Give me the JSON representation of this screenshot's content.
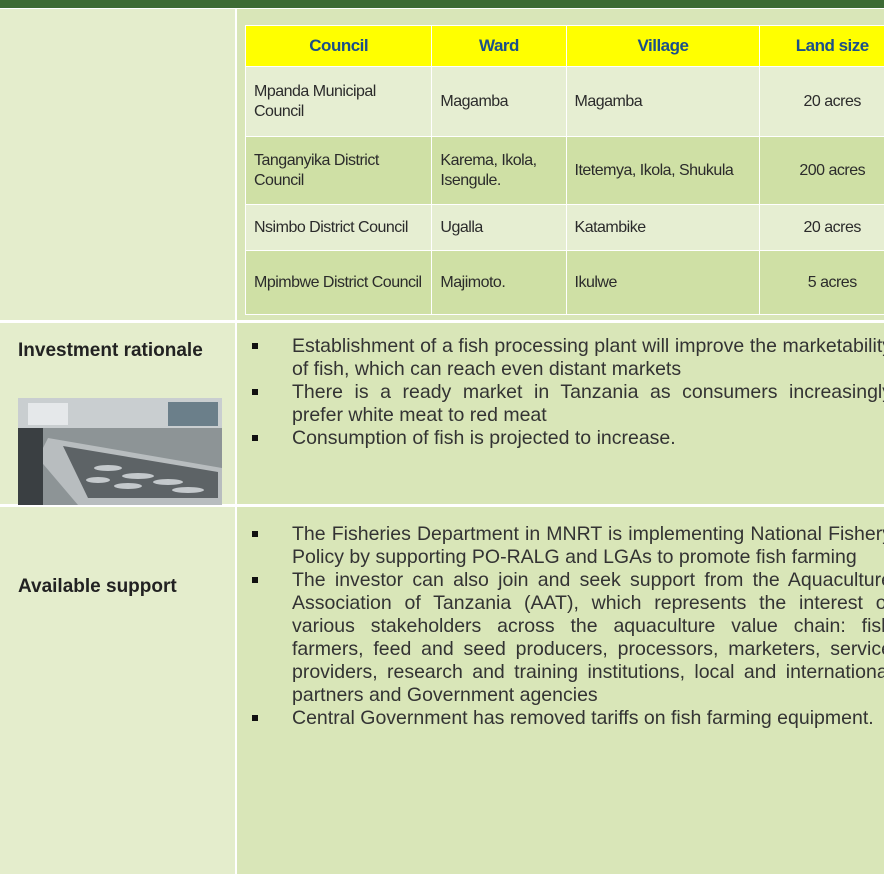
{
  "table": {
    "columns": [
      "Council",
      "Ward",
      "Village",
      "Land size"
    ],
    "rows": [
      [
        "Mpanda Municipal Council",
        "Magamba",
        "Magamba",
        "20 acres"
      ],
      [
        "Tanganyika District Council",
        "Karema, Ikola, Isengule.",
        "Itetemya, Ikola, Shukula",
        "200 acres"
      ],
      [
        "Nsimbo District Council",
        "Ugalla",
        "Katambike",
        "20 acres"
      ],
      [
        "Mpimbwe District Council",
        "Majimoto.",
        "Ikulwe",
        "5 acres"
      ]
    ]
  },
  "sections": [
    {
      "label": "Investment rationale",
      "bullets": [
        "Establishment of a fish processing plant will improve the marketability of fish, which can reach even distant markets",
        "There is a ready market in Tanzania as consumers increasingly prefer white meat to red meat",
        "Consumption of fish is projected to increase."
      ]
    },
    {
      "label": "Available support",
      "bullets": [
        "The Fisheries Department in MNRT is implementing National Fishery Policy by supporting PO-RALG and LGAs to promote fish farming",
        "The investor can also join and seek support from the Aquaculture Association of Tanzania (AAT), which represents the interest of various stakeholders across the aquaculture value chain: fish farmers, feed and seed producers, processors, marketers, service providers, research and training institutions, local and international partners and Government agencies",
        "Central Government has removed tariffs on fish farming equipment."
      ]
    }
  ]
}
